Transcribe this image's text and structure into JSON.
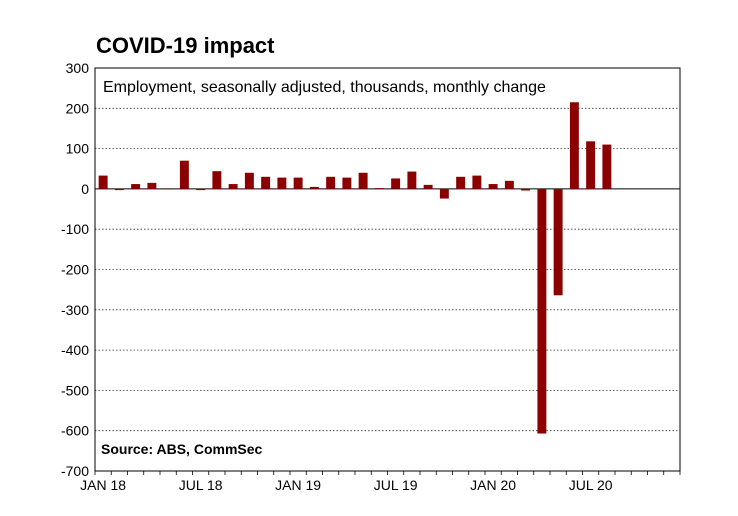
{
  "chart_data": {
    "type": "bar",
    "title": "COVID-19 impact",
    "subtitle": "Employment, seasonally adjusted, thousands, monthly change",
    "source": "Source: ABS, CommSec",
    "colors": {
      "bar": "#8b0000",
      "grid": "#000000"
    },
    "ylim": [
      -700,
      300
    ],
    "yticks": [
      300,
      200,
      100,
      0,
      -100,
      -200,
      -300,
      -400,
      -500,
      -600,
      -700
    ],
    "xtick_labels": [
      {
        "label": "JAN 18",
        "index": 0
      },
      {
        "label": "JUL 18",
        "index": 6
      },
      {
        "label": "JAN 19",
        "index": 12
      },
      {
        "label": "JUL 19",
        "index": 18
      },
      {
        "label": "JAN 20",
        "index": 24
      },
      {
        "label": "JUL 20",
        "index": 30
      }
    ],
    "x": [
      "Jan 18",
      "Feb 18",
      "Mar 18",
      "Apr 18",
      "May 18",
      "Jun 18",
      "Jul 18",
      "Aug 18",
      "Sep 18",
      "Oct 18",
      "Nov 18",
      "Dec 18",
      "Jan 19",
      "Feb 19",
      "Mar 19",
      "Apr 19",
      "May 19",
      "Jun 19",
      "Jul 19",
      "Aug 19",
      "Sep 19",
      "Oct 19",
      "Nov 19",
      "Dec 19",
      "Jan 20",
      "Feb 20",
      "Mar 20",
      "Apr 20",
      "May 20",
      "Jun 20",
      "Jul 20",
      "Aug 20"
    ],
    "values": [
      33,
      -3,
      12,
      15,
      0,
      70,
      -3,
      44,
      12,
      40,
      30,
      28,
      28,
      5,
      30,
      28,
      40,
      2,
      26,
      43,
      10,
      -24,
      30,
      33,
      12,
      20,
      -4,
      -607,
      -264,
      215,
      118,
      110
    ],
    "n_slots": 36,
    "grid": true
  }
}
